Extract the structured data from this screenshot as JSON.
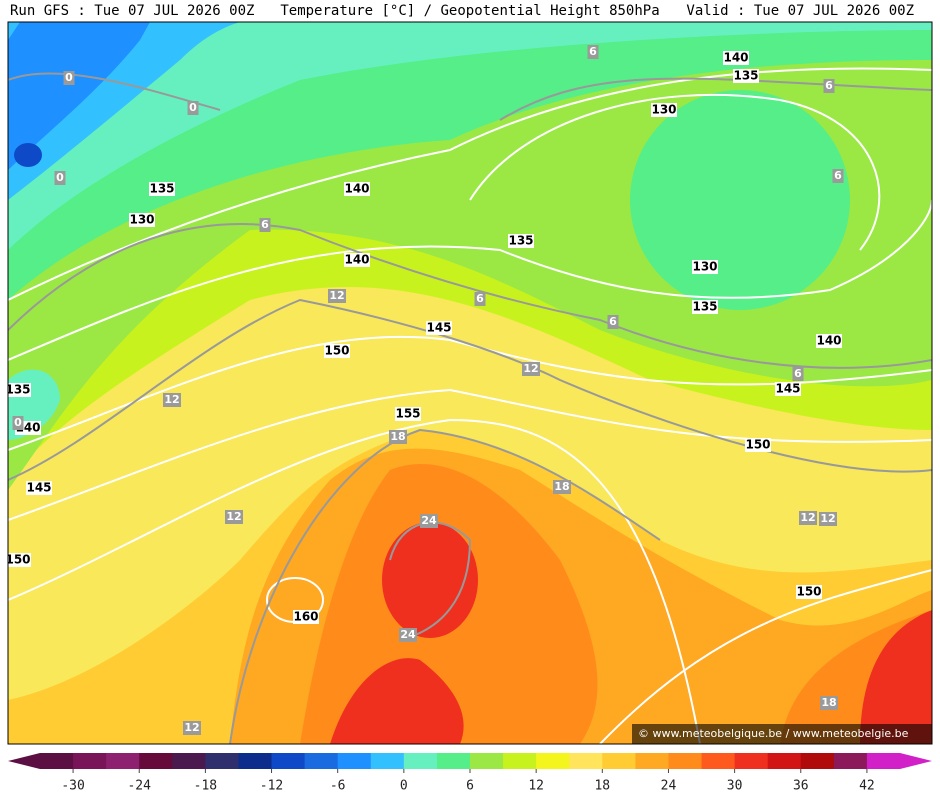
{
  "header": {
    "left": "Run GFS : Tue 07 JUL 2026 00Z",
    "center": "Temperature [°C] / Geopotential Height 850hPa",
    "right": "Valid : Tue 07 JUL 2026 00Z"
  },
  "height_labels": [
    "140",
    "135",
    "130",
    "135",
    "140",
    "130",
    "135",
    "130",
    "140",
    "145",
    "135",
    "150",
    "140",
    "135",
    "145",
    "140",
    "155",
    "150",
    "145",
    "150",
    "150",
    "160"
  ],
  "temperature_labels": [
    "6",
    "6",
    "0",
    "0",
    "0",
    "6",
    "6",
    "6",
    "12",
    "6",
    "12",
    "6",
    "12",
    "0",
    "18",
    "18",
    "12",
    "12",
    "12",
    "24",
    "24",
    "18",
    "12"
  ],
  "watermark": "© www.meteobelgique.be / www.meteobelgie.be",
  "colorbar": {
    "lim": [
      -33,
      45
    ],
    "ticks": [
      -30,
      -24,
      -18,
      -12,
      -6,
      0,
      6,
      12,
      18,
      24,
      30,
      36,
      42
    ],
    "colors": [
      "#5c0f43",
      "#7a1458",
      "#8e2070",
      "#650a3a",
      "#4a1a4f",
      "#2f2f6e",
      "#0c2d8c",
      "#0e4ac8",
      "#1a6ae0",
      "#1e90ff",
      "#33c0ff",
      "#66f0c0",
      "#55ee88",
      "#9be845",
      "#c8f21e",
      "#f5f51e",
      "#ffe45c",
      "#ffcc33",
      "#ffa822",
      "#ff8c1a",
      "#ff5a1e",
      "#f0301e",
      "#d21414",
      "#b00a0a",
      "#8c1a5a",
      "#d220c8"
    ]
  }
}
